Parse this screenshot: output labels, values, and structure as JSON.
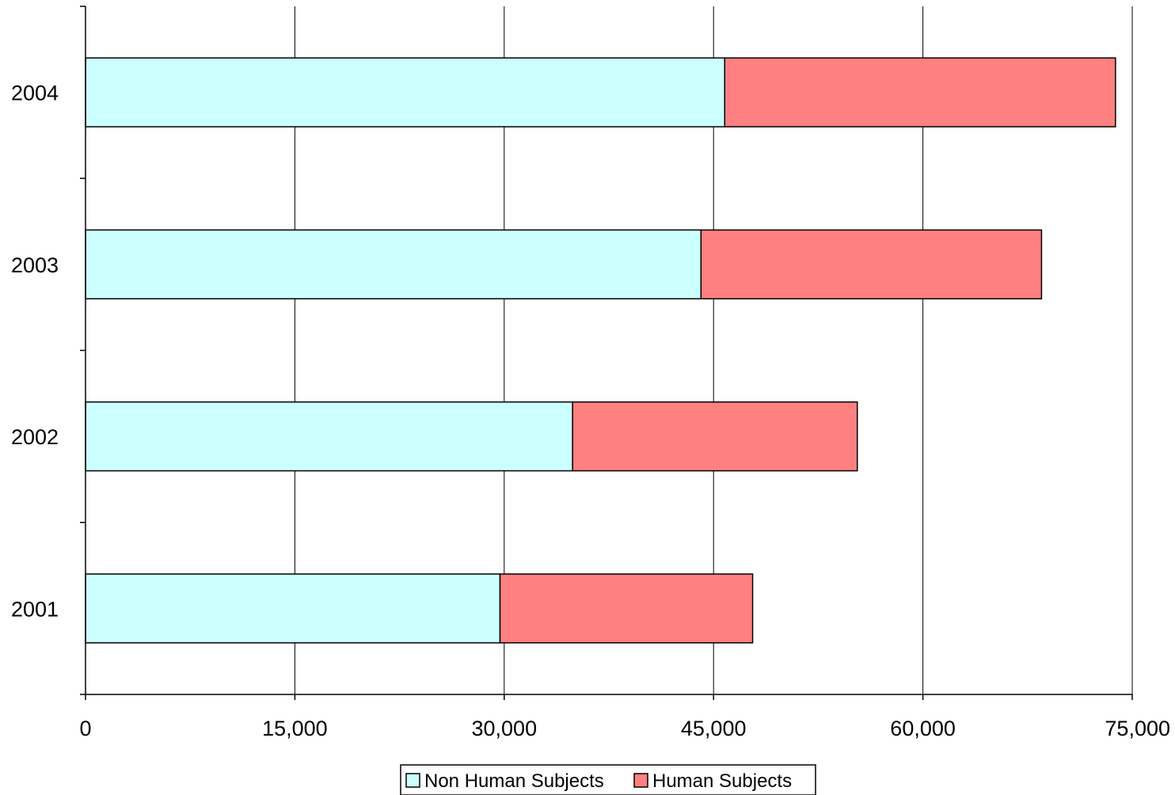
{
  "chart_data": {
    "type": "bar",
    "orientation": "horizontal",
    "stacked": true,
    "categories": [
      "2001",
      "2002",
      "2003",
      "2004"
    ],
    "series": [
      {
        "name": "Non Human Subjects",
        "color": "#CCFFFF",
        "values": [
          29700,
          34900,
          44100,
          45800
        ]
      },
      {
        "name": "Human Subjects",
        "color": "#FF8080",
        "values": [
          18100,
          20400,
          24400,
          28000
        ]
      }
    ],
    "xlim": [
      0,
      75000
    ],
    "xticks": [
      0,
      15000,
      30000,
      45000,
      60000,
      75000
    ],
    "xtick_labels": [
      "0",
      "15,000",
      "30,000",
      "45,000",
      "60,000",
      "75,000"
    ],
    "grid": true,
    "legend_position": "bottom",
    "title": "",
    "xlabel": "",
    "ylabel": ""
  }
}
